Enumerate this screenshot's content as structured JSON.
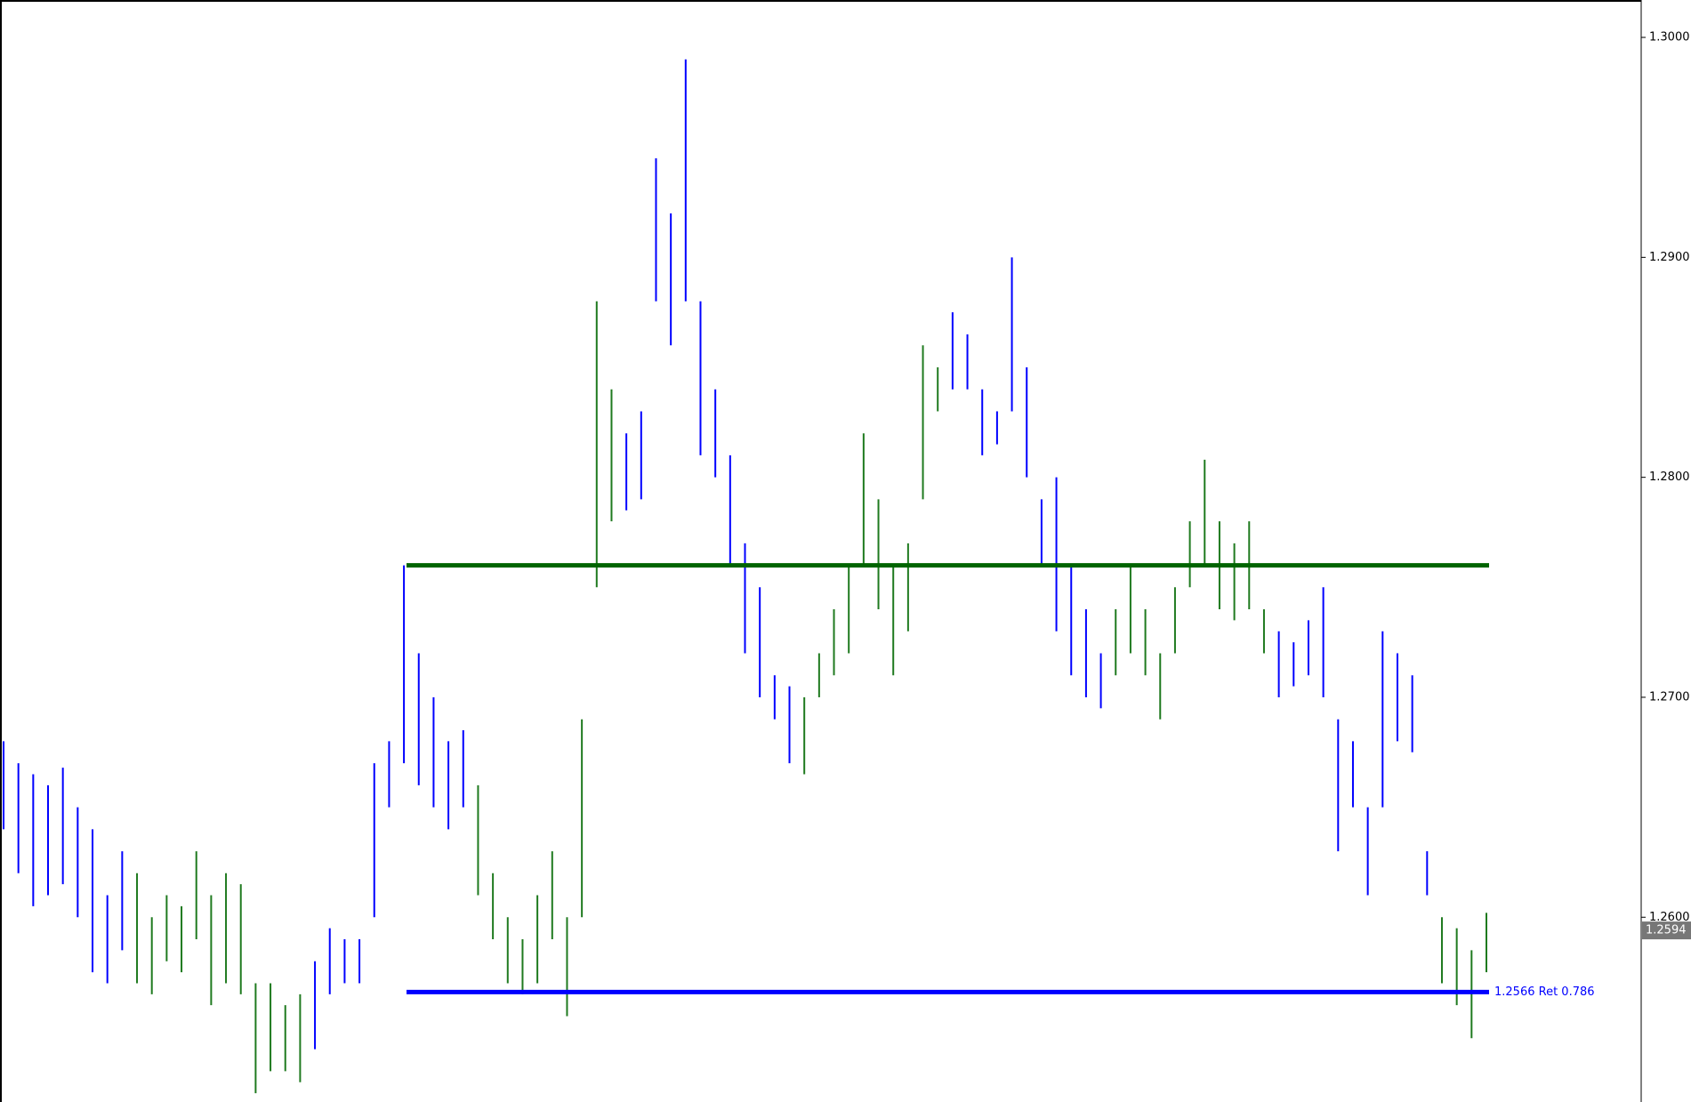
{
  "chart_data": {
    "type": "ohlc",
    "ylim": [
      1.2516,
      1.3017
    ],
    "yticks": [
      {
        "value": 1.26,
        "label": "1.2600"
      },
      {
        "value": 1.27,
        "label": "1.2700"
      },
      {
        "value": 1.28,
        "label": "1.2800"
      },
      {
        "value": 1.29,
        "label": "1.2900"
      },
      {
        "value": 1.3,
        "label": "1.3000"
      }
    ],
    "high": [
      1.268,
      1.267,
      1.2665,
      1.266,
      1.2668,
      1.265,
      1.264,
      1.261,
      1.263,
      1.262,
      1.26,
      1.261,
      1.2605,
      1.263,
      1.261,
      1.262,
      1.2615,
      1.257,
      1.257,
      1.256,
      1.2565,
      1.258,
      1.2595,
      1.259,
      1.259,
      1.267,
      1.268,
      1.276,
      1.272,
      1.27,
      1.268,
      1.2685,
      1.266,
      1.262,
      1.26,
      1.259,
      1.261,
      1.263,
      1.26,
      1.269,
      1.288,
      1.284,
      1.282,
      1.283,
      1.2945,
      1.292,
      1.299,
      1.288,
      1.284,
      1.281,
      1.277,
      1.275,
      1.271,
      1.2705,
      1.27,
      1.272,
      1.274,
      1.276,
      1.282,
      1.279,
      1.276,
      1.277,
      1.286,
      1.285,
      1.2875,
      1.2865,
      1.284,
      1.283,
      1.29,
      1.285,
      1.279,
      1.28,
      1.276,
      1.274,
      1.272,
      1.274,
      1.276,
      1.274,
      1.272,
      1.275,
      1.278,
      1.2808,
      1.278,
      1.277,
      1.278,
      1.274,
      1.273,
      1.2725,
      1.2735,
      1.275,
      1.269,
      1.268,
      1.265,
      1.273,
      1.272,
      1.271,
      1.263,
      1.26,
      1.2595,
      1.2585,
      1.2602
    ],
    "low": [
      1.264,
      1.262,
      1.2605,
      1.261,
      1.2615,
      1.26,
      1.2575,
      1.257,
      1.2585,
      1.257,
      1.2565,
      1.258,
      1.2575,
      1.259,
      1.256,
      1.257,
      1.2565,
      1.252,
      1.253,
      1.253,
      1.2525,
      1.254,
      1.2565,
      1.257,
      1.257,
      1.26,
      1.265,
      1.267,
      1.266,
      1.265,
      1.264,
      1.265,
      1.261,
      1.259,
      1.257,
      1.2565,
      1.257,
      1.259,
      1.2555,
      1.26,
      1.275,
      1.278,
      1.2785,
      1.279,
      1.288,
      1.286,
      1.288,
      1.281,
      1.28,
      1.276,
      1.272,
      1.27,
      1.269,
      1.267,
      1.2665,
      1.27,
      1.271,
      1.272,
      1.276,
      1.274,
      1.271,
      1.273,
      1.279,
      1.283,
      1.284,
      1.284,
      1.281,
      1.2815,
      1.283,
      1.28,
      1.276,
      1.273,
      1.271,
      1.27,
      1.2695,
      1.271,
      1.272,
      1.271,
      1.269,
      1.272,
      1.275,
      1.276,
      1.274,
      1.2735,
      1.274,
      1.272,
      1.27,
      1.2705,
      1.271,
      1.27,
      1.263,
      1.265,
      1.261,
      1.265,
      1.268,
      1.2675,
      1.261,
      1.257,
      1.256,
      1.2545,
      1.2575
    ],
    "colors": [
      "#0000ff",
      "#0000ff",
      "#0000ff",
      "#0000ff",
      "#0000ff",
      "#0000ff",
      "#0000ff",
      "#0000ff",
      "#0000ff",
      "#1f7a1f",
      "#1f7a1f",
      "#1f7a1f",
      "#1f7a1f",
      "#1f7a1f",
      "#1f7a1f",
      "#1f7a1f",
      "#1f7a1f",
      "#1f7a1f",
      "#1f7a1f",
      "#1f7a1f",
      "#1f7a1f",
      "#0000ff",
      "#0000ff",
      "#0000ff",
      "#0000ff",
      "#0000ff",
      "#0000ff",
      "#0000ff",
      "#0000ff",
      "#0000ff",
      "#0000ff",
      "#0000ff",
      "#1f7a1f",
      "#1f7a1f",
      "#1f7a1f",
      "#1f7a1f",
      "#1f7a1f",
      "#1f7a1f",
      "#1f7a1f",
      "#1f7a1f",
      "#1f7a1f",
      "#1f7a1f",
      "#0000ff",
      "#0000ff",
      "#0000ff",
      "#0000ff",
      "#0000ff",
      "#0000ff",
      "#0000ff",
      "#0000ff",
      "#0000ff",
      "#0000ff",
      "#0000ff",
      "#0000ff",
      "#1f7a1f",
      "#1f7a1f",
      "#1f7a1f",
      "#1f7a1f",
      "#1f7a1f",
      "#1f7a1f",
      "#1f7a1f",
      "#1f7a1f",
      "#1f7a1f",
      "#1f7a1f",
      "#0000ff",
      "#0000ff",
      "#0000ff",
      "#0000ff",
      "#0000ff",
      "#0000ff",
      "#0000ff",
      "#0000ff",
      "#0000ff",
      "#0000ff",
      "#0000ff",
      "#1f7a1f",
      "#1f7a1f",
      "#1f7a1f",
      "#1f7a1f",
      "#1f7a1f",
      "#1f7a1f",
      "#1f7a1f",
      "#1f7a1f",
      "#1f7a1f",
      "#1f7a1f",
      "#1f7a1f",
      "#0000ff",
      "#0000ff",
      "#0000ff",
      "#0000ff",
      "#0000ff",
      "#0000ff",
      "#0000ff",
      "#0000ff",
      "#0000ff",
      "#0000ff",
      "#0000ff",
      "#1f7a1f",
      "#1f7a1f",
      "#1f7a1f",
      "#1f7a1f"
    ],
    "hlines": [
      {
        "value": 1.276,
        "color": "#006400"
      },
      {
        "value": 1.2566,
        "color": "#0000ff",
        "label": "1.2566 Ret 0.786"
      }
    ],
    "last_price": 1.2594
  }
}
